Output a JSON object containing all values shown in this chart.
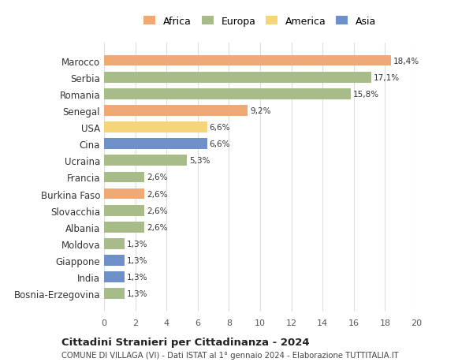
{
  "countries": [
    "Marocco",
    "Serbia",
    "Romania",
    "Senegal",
    "USA",
    "Cina",
    "Ucraina",
    "Francia",
    "Burkina Faso",
    "Slovacchia",
    "Albania",
    "Moldova",
    "Giappone",
    "India",
    "Bosnia-Erzegovina"
  ],
  "values": [
    18.4,
    17.1,
    15.8,
    9.2,
    6.6,
    6.6,
    5.3,
    2.6,
    2.6,
    2.6,
    2.6,
    1.3,
    1.3,
    1.3,
    1.3
  ],
  "labels": [
    "18,4%",
    "17,1%",
    "15,8%",
    "9,2%",
    "6,6%",
    "6,6%",
    "5,3%",
    "2,6%",
    "2,6%",
    "2,6%",
    "2,6%",
    "1,3%",
    "1,3%",
    "1,3%",
    "1,3%"
  ],
  "continents": [
    "Africa",
    "Europa",
    "Europa",
    "Africa",
    "America",
    "Asia",
    "Europa",
    "Europa",
    "Africa",
    "Europa",
    "Europa",
    "Europa",
    "Asia",
    "Asia",
    "Europa"
  ],
  "continent_colors": {
    "Africa": "#F0A875",
    "Europa": "#A8BC8A",
    "America": "#F5D57A",
    "Asia": "#6E8FC7"
  },
  "legend_order": [
    "Africa",
    "Europa",
    "America",
    "Asia"
  ],
  "xlim": [
    0,
    20
  ],
  "xticks": [
    0,
    2,
    4,
    6,
    8,
    10,
    12,
    14,
    16,
    18,
    20
  ],
  "title": "Cittadini Stranieri per Cittadinanza - 2024",
  "subtitle": "COMUNE DI VILLAGA (VI) - Dati ISTAT al 1° gennaio 2024 - Elaborazione TUTTITALIA.IT",
  "bg_color": "#ffffff",
  "grid_color": "#dddddd",
  "bar_height": 0.65
}
